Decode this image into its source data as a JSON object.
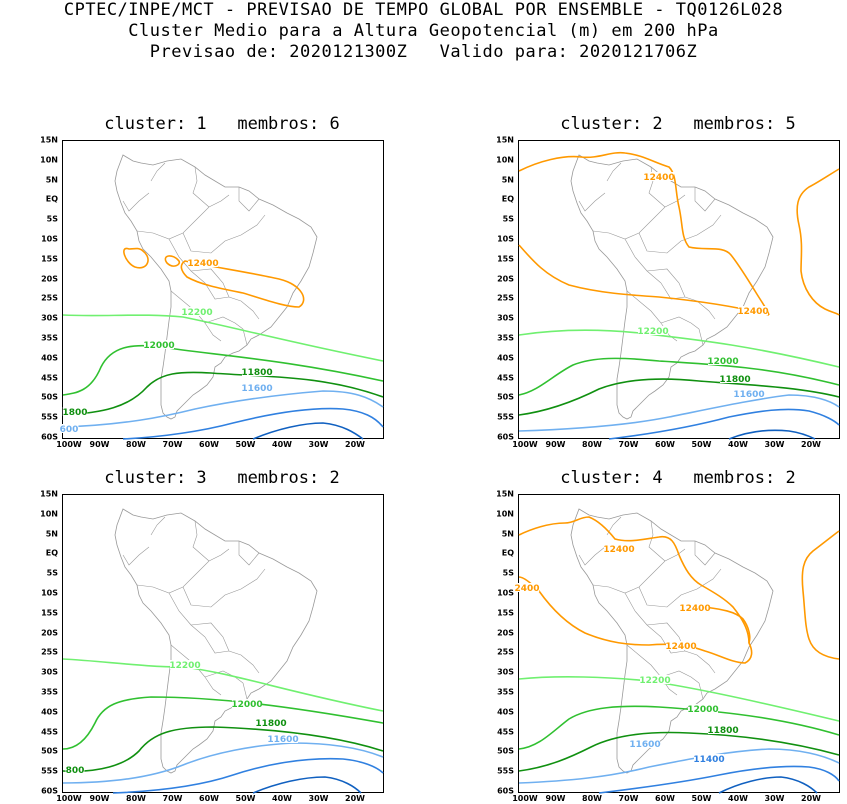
{
  "header": {
    "line1": "CPTEC/INPE/MCT - PREVISAO DE TEMPO GLOBAL POR ENSEMBLE - TQ0126L028",
    "line2": "Cluster Medio para a Altura Geopotencial (m) em 200 hPa",
    "line3": "Previsao de: 2020121300Z   Valido para: 2020121706Z"
  },
  "axes": {
    "y_ticks": [
      "15N",
      "10N",
      "5N",
      "EQ",
      "5S",
      "10S",
      "15S",
      "20S",
      "25S",
      "30S",
      "35S",
      "40S",
      "45S",
      "50S",
      "55S",
      "60S"
    ],
    "x_ticks": [
      "100W",
      "90W",
      "80W",
      "70W",
      "60W",
      "50W",
      "40W",
      "30W",
      "20W"
    ]
  },
  "colors": {
    "c12400": "#ff9900",
    "c12200": "#70f070",
    "c12000": "#30c030",
    "c11800": "#109010",
    "c11600": "#70b0f0",
    "c11400": "#3080e0",
    "c11200": "#1060c0",
    "coast": "#999999"
  },
  "panels": [
    {
      "title": "cluster: 1   membros: 6",
      "labels": [
        {
          "text": "12400",
          "color": "c12400"
        },
        {
          "text": "12200",
          "color": "c12200"
        },
        {
          "text": "12000",
          "color": "c12000"
        },
        {
          "text": "11800",
          "color": "c11800"
        },
        {
          "text": "11600",
          "color": "c11600"
        },
        {
          "text": "1800",
          "color": "c11800"
        },
        {
          "text": "600",
          "color": "c11600"
        }
      ]
    },
    {
      "title": "cluster: 2   membros: 5",
      "labels": [
        {
          "text": "12400",
          "color": "c12400"
        },
        {
          "text": "12400",
          "color": "c12400"
        },
        {
          "text": "12200",
          "color": "c12200"
        },
        {
          "text": "12000",
          "color": "c12000"
        },
        {
          "text": "11800",
          "color": "c11800"
        },
        {
          "text": "11600",
          "color": "c11600"
        }
      ]
    },
    {
      "title": "cluster: 3   membros: 2",
      "labels": [
        {
          "text": "12200",
          "color": "c12200"
        },
        {
          "text": "12000",
          "color": "c12000"
        },
        {
          "text": "11800",
          "color": "c11800"
        },
        {
          "text": "11600",
          "color": "c11600"
        },
        {
          "text": "800",
          "color": "c11800"
        }
      ]
    },
    {
      "title": "cluster: 4   membros: 2",
      "labels": [
        {
          "text": "12400",
          "color": "c12400"
        },
        {
          "text": "2400",
          "color": "c12400"
        },
        {
          "text": "12400",
          "color": "c12400"
        },
        {
          "text": "12400",
          "color": "c12400"
        },
        {
          "text": "12200",
          "color": "c12200"
        },
        {
          "text": "12000",
          "color": "c12000"
        },
        {
          "text": "11800",
          "color": "c11800"
        },
        {
          "text": "11600",
          "color": "c11600"
        },
        {
          "text": "11400",
          "color": "c11400"
        }
      ]
    }
  ]
}
